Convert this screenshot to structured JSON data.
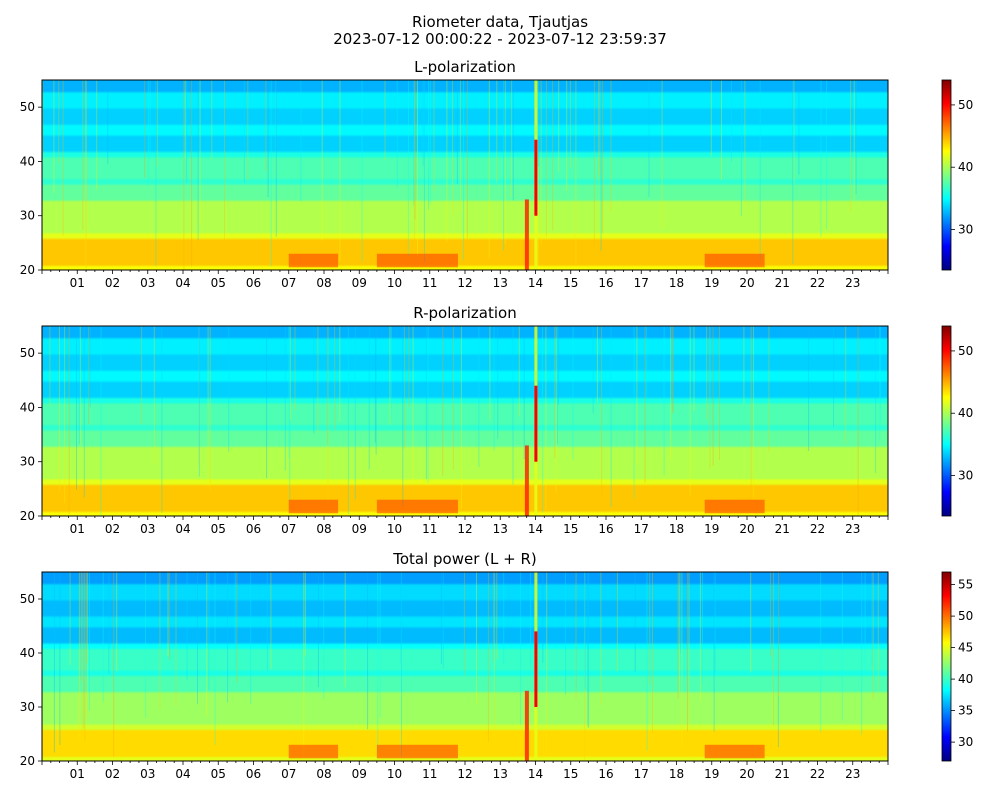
{
  "figure": {
    "title_line1": "Riometer data, Tjautjas",
    "title_line2": "2023-07-12 00:00:22 - 2023-07-12 23:59:37",
    "colormap": "jet",
    "colormap_colors": [
      "#00007f",
      "#0000ff",
      "#007fff",
      "#00ffff",
      "#7fff7f",
      "#ffff00",
      "#ff7f00",
      "#ff0000",
      "#7f0000"
    ]
  },
  "chart_data": [
    {
      "type": "heatmap",
      "title": "L-polarization",
      "xlabel": "",
      "ylabel": "",
      "x_range_hours": [
        0,
        24
      ],
      "x_tick_labels": [
        "01",
        "02",
        "03",
        "04",
        "05",
        "06",
        "07",
        "08",
        "09",
        "10",
        "11",
        "12",
        "13",
        "14",
        "15",
        "16",
        "17",
        "18",
        "19",
        "20",
        "21",
        "22",
        "23"
      ],
      "y_ticks": [
        20,
        30,
        40,
        50
      ],
      "ylim": [
        20,
        55
      ],
      "colorbar_ticks": [
        30,
        40,
        50
      ],
      "clim": [
        23.5,
        54
      ]
    },
    {
      "type": "heatmap",
      "title": "R-polarization",
      "xlabel": "",
      "ylabel": "",
      "x_range_hours": [
        0,
        24
      ],
      "x_tick_labels": [
        "01",
        "02",
        "03",
        "04",
        "05",
        "06",
        "07",
        "08",
        "09",
        "10",
        "11",
        "12",
        "13",
        "14",
        "15",
        "16",
        "17",
        "18",
        "19",
        "20",
        "21",
        "22",
        "23"
      ],
      "y_ticks": [
        20,
        30,
        40,
        50
      ],
      "ylim": [
        20,
        55
      ],
      "colorbar_ticks": [
        30,
        40,
        50
      ],
      "clim": [
        23.5,
        54
      ]
    },
    {
      "type": "heatmap",
      "title": "Total power (L + R)",
      "xlabel": "",
      "ylabel": "",
      "x_range_hours": [
        0,
        24
      ],
      "x_tick_labels": [
        "01",
        "02",
        "03",
        "04",
        "05",
        "06",
        "07",
        "08",
        "09",
        "10",
        "11",
        "12",
        "13",
        "14",
        "15",
        "16",
        "17",
        "18",
        "19",
        "20",
        "21",
        "22",
        "23"
      ],
      "y_ticks": [
        20,
        30,
        40,
        50
      ],
      "ylim": [
        20,
        55
      ],
      "colorbar_ticks": [
        30,
        35,
        40,
        45,
        50,
        55
      ],
      "clim": [
        27,
        57
      ]
    }
  ]
}
